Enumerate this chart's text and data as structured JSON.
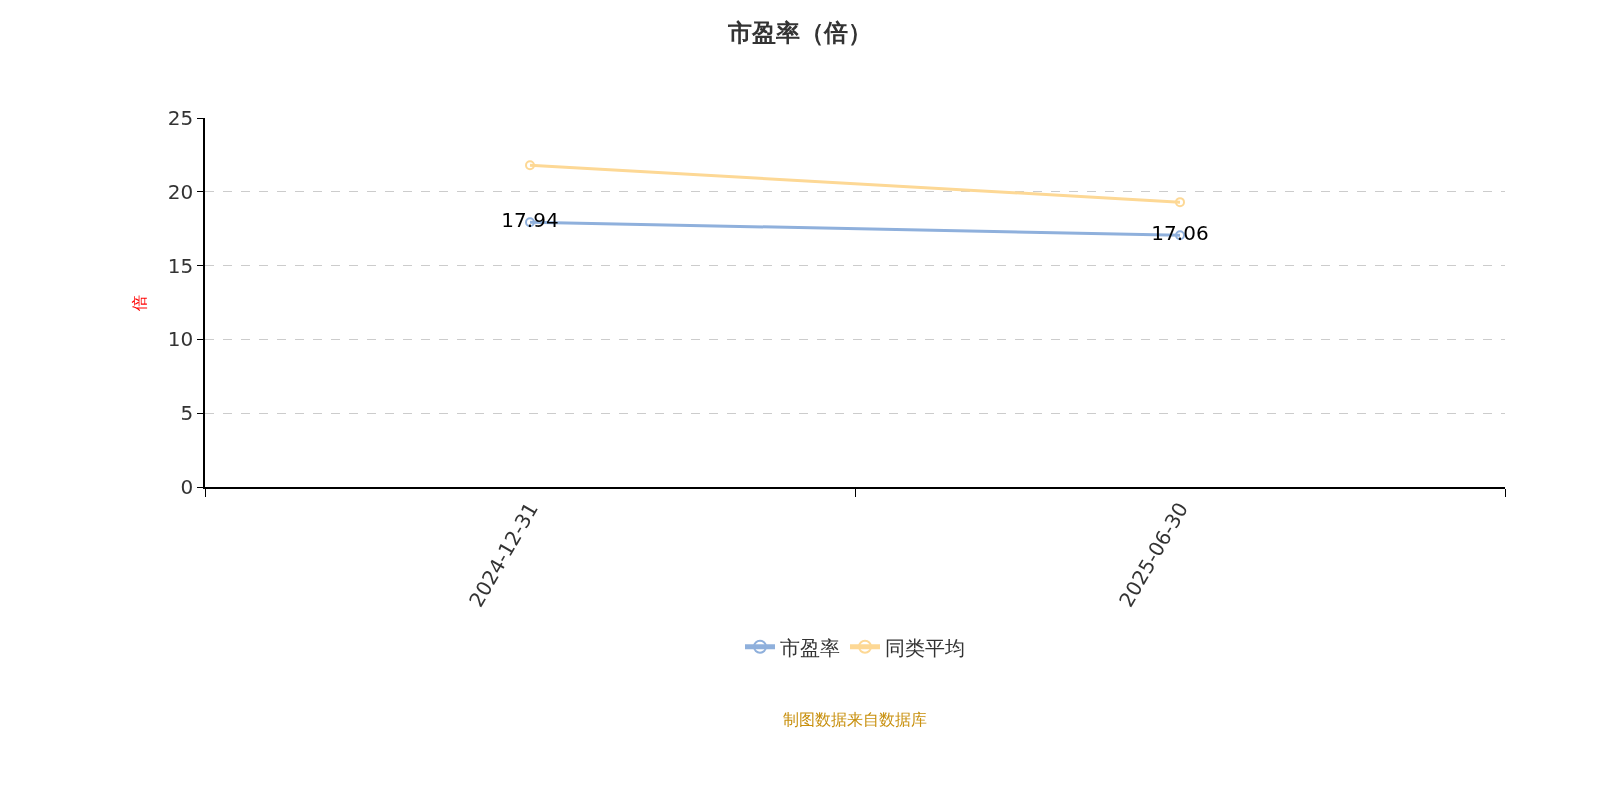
{
  "chart_data": {
    "type": "line",
    "title": "市盈率（倍）",
    "ylabel": "倍",
    "categories": [
      "2024-12-31",
      "2025-06-30"
    ],
    "series": [
      {
        "name": "市盈率",
        "color": "#8fb0dc",
        "values": [
          17.94,
          17.06
        ],
        "value_labels": [
          "17.94",
          "17.06"
        ]
      },
      {
        "name": "同类平均",
        "color": "#fdd895",
        "values": [
          21.8,
          19.3
        ]
      }
    ],
    "ylim": [
      0,
      25
    ],
    "yticks": [
      0,
      5,
      10,
      15,
      20,
      25
    ],
    "grid": "y",
    "legend": "bottom",
    "marker": "circle",
    "line_style": "solid",
    "annotations": [
      "制图数据来自数据库"
    ]
  }
}
